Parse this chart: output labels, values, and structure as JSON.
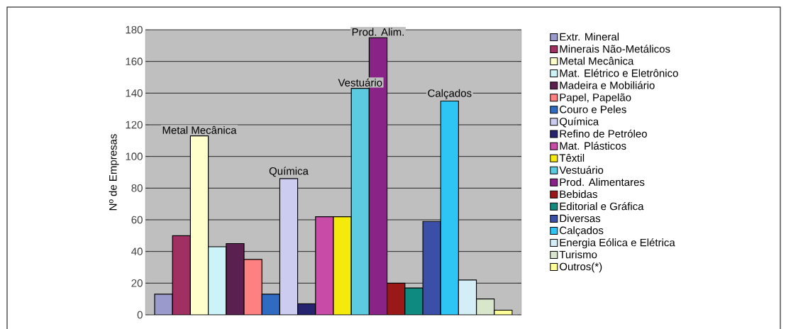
{
  "chart_data": {
    "type": "bar",
    "ylabel": "Nº de Empresas",
    "categories": [
      null
    ],
    "ylim": [
      0,
      180
    ],
    "yticks": [
      0,
      20,
      40,
      60,
      80,
      100,
      120,
      140,
      160,
      180
    ],
    "grid": "y",
    "legend": "right",
    "series": [
      {
        "name": "Extr. Mineral",
        "color": "#9a9acd",
        "values": [
          13
        ]
      },
      {
        "name": "Minerais Não-Metálicos",
        "color": "#a03062",
        "values": [
          50
        ]
      },
      {
        "name": "Metal Mecânica",
        "color": "#ffffcc",
        "values": [
          113
        ]
      },
      {
        "name": "Mat. Elétrico e Eletrônico",
        "color": "#ccf4f8",
        "values": [
          43
        ]
      },
      {
        "name": "Madeira e Mobiliário",
        "color": "#5a2050",
        "values": [
          45
        ]
      },
      {
        "name": "Papel, Papelão",
        "color": "#ff8080",
        "values": [
          35
        ]
      },
      {
        "name": "Couro e Peles",
        "color": "#2f6bc0",
        "values": [
          13
        ]
      },
      {
        "name": "Química",
        "color": "#ccccf0",
        "values": [
          86
        ]
      },
      {
        "name": "Refino de Petróleo",
        "color": "#26246e",
        "values": [
          7
        ]
      },
      {
        "name": "Mat. Plásticos",
        "color": "#c84ba8",
        "values": [
          62
        ]
      },
      {
        "name": "Têxtil",
        "color": "#f5ea0c",
        "values": [
          62
        ]
      },
      {
        "name": "Vestuário",
        "color": "#5ccbe0",
        "values": [
          143
        ]
      },
      {
        "name": "Prod. Alimentares",
        "color": "#8a2388",
        "values": [
          175
        ]
      },
      {
        "name": "Bebidas",
        "color": "#9b1818",
        "values": [
          20
        ]
      },
      {
        "name": "Editorial e Gráfica",
        "color": "#0f8a80",
        "values": [
          17
        ]
      },
      {
        "name": "Diversas",
        "color": "#3a4fa8",
        "values": [
          59
        ]
      },
      {
        "name": "Calçados",
        "color": "#2ec4f4",
        "values": [
          135
        ]
      },
      {
        "name": "Energia Eólica e Elétrica",
        "color": "#d4eef8",
        "values": [
          22
        ]
      },
      {
        "name": "Turismo",
        "color": "#d8e6cc",
        "values": [
          10
        ]
      },
      {
        "name": "Outros(*)",
        "color": "#ffff99",
        "values": [
          3
        ]
      }
    ],
    "annotations": [
      {
        "text": "Metal Mecânica",
        "y": 113
      },
      {
        "text": "Química",
        "y": 86
      },
      {
        "text": "Vestuário",
        "y": 143
      },
      {
        "text": "Prod. Alim.",
        "y": 175
      },
      {
        "text": "Calçados",
        "y": 135
      }
    ]
  }
}
